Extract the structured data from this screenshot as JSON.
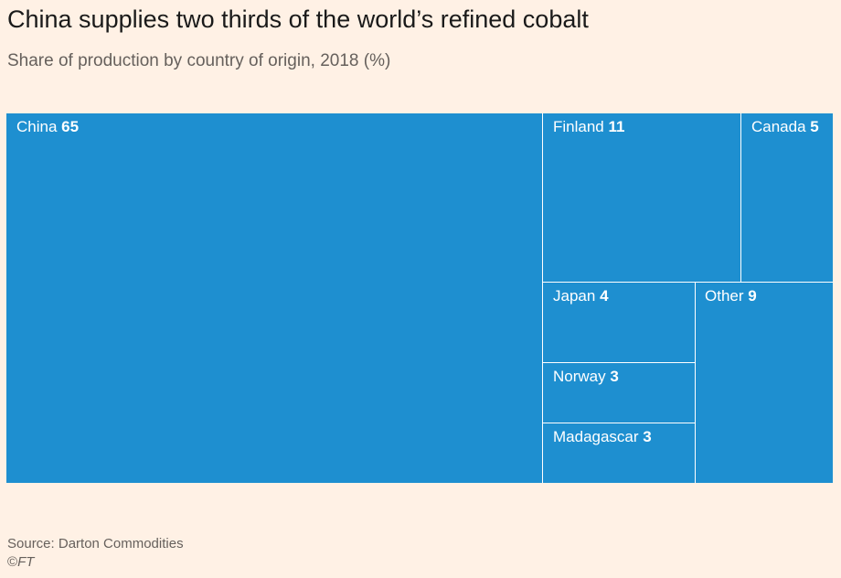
{
  "chart_data": {
    "type": "treemap",
    "title": "China supplies two thirds of the world’s refined cobalt",
    "subtitle": "Share of production by country of origin, 2018 (%)",
    "unit": "%",
    "items": [
      {
        "name": "China",
        "value": 65
      },
      {
        "name": "Finland",
        "value": 11
      },
      {
        "name": "Canada",
        "value": 5
      },
      {
        "name": "Japan",
        "value": 4
      },
      {
        "name": "Other",
        "value": 9
      },
      {
        "name": "Norway",
        "value": 3
      },
      {
        "name": "Madagascar",
        "value": 3
      }
    ],
    "colors": {
      "tile": "#1e8fd0",
      "divider": "#ffffff",
      "background": "#fff1e5"
    }
  },
  "footer": {
    "source": "Source: Darton Commodities",
    "copyright_symbol": "©",
    "copyright_brand": "FT"
  }
}
